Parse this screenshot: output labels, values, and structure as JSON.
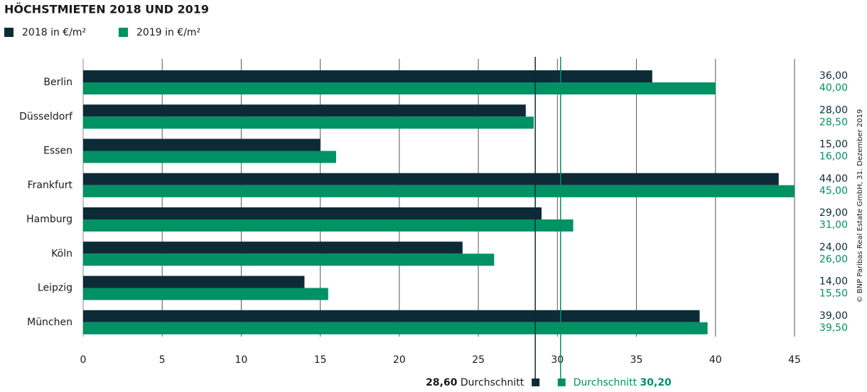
{
  "chart_data": {
    "type": "bar",
    "orientation": "horizontal",
    "title": "HÖCHSTMIETEN 2018 UND 2019",
    "categories": [
      "Berlin",
      "Düsseldorf",
      "Essen",
      "Frankfurt",
      "Hamburg",
      "Köln",
      "Leipzig",
      "München"
    ],
    "series": [
      {
        "name": "2018 in €/m²",
        "color": "#0d2b37",
        "label_color": "#0d2b37",
        "values": [
          36,
          28,
          15,
          44,
          29,
          24,
          14,
          39
        ],
        "value_labels": [
          "36,00",
          "28,00",
          "15,00",
          "44,00",
          "29,00",
          "24,00",
          "14,00",
          "39,00"
        ],
        "average": 28.6,
        "average_label": "28,60"
      },
      {
        "name": "2019 in €/m²",
        "color": "#009164",
        "label_color": "#009164",
        "values": [
          40,
          28.5,
          16,
          45,
          31,
          26,
          15.5,
          39.5
        ],
        "value_labels": [
          "40,00",
          "28,50",
          "16,00",
          "45,00",
          "31,00",
          "26,00",
          "15,50",
          "39,50"
        ],
        "average": 30.2,
        "average_label": "30,20"
      }
    ],
    "average_text": "Durchschnitt",
    "xlim": [
      0,
      45
    ],
    "xticks": [
      0,
      5,
      10,
      15,
      20,
      25,
      30,
      35,
      40,
      45
    ],
    "grid": true,
    "source": "© BNP Paribas Real Estate GmbH, 31. Dezember 2019"
  }
}
